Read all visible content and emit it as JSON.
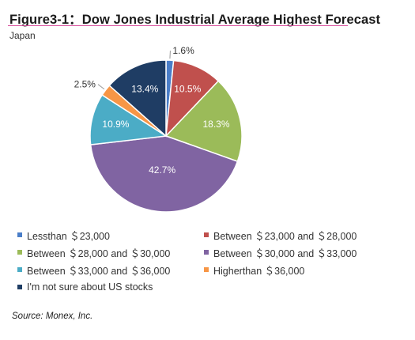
{
  "figure": {
    "title": "Figure3-1：Dow Jones Industrial Average Highest Forecast",
    "subtitle": "Japan",
    "source": "Source: Monex, Inc."
  },
  "chart_data": {
    "type": "pie",
    "title": "Figure3-1：Dow Jones Industrial Average Highest Forecast",
    "subtitle": "Japan",
    "slices": [
      {
        "name": "Lessthan ＄23,000",
        "value": 1.6,
        "label": "1.6%",
        "color": "#4a7ec8"
      },
      {
        "name": "Between ＄23,000 and ＄28,000",
        "value": 10.5,
        "label": "10.5%",
        "color": "#c0504d"
      },
      {
        "name": "Between ＄28,000 and ＄30,000",
        "value": 18.3,
        "label": "18.3%",
        "color": "#9bbb59"
      },
      {
        "name": "Between ＄30,000 and ＄33,000",
        "value": 42.7,
        "label": "42.7%",
        "color": "#8064a2"
      },
      {
        "name": "Between ＄33,000 and ＄36,000",
        "value": 10.9,
        "label": "10.9%",
        "color": "#4bacc6"
      },
      {
        "name": "Higherthan ＄36,000",
        "value": 2.5,
        "label": "2.5%",
        "color": "#f79646"
      },
      {
        "name": "I'm not sure about US stocks",
        "value": 13.4,
        "label": "13.4%",
        "color": "#1f3d64"
      }
    ],
    "legend_position": "bottom"
  }
}
